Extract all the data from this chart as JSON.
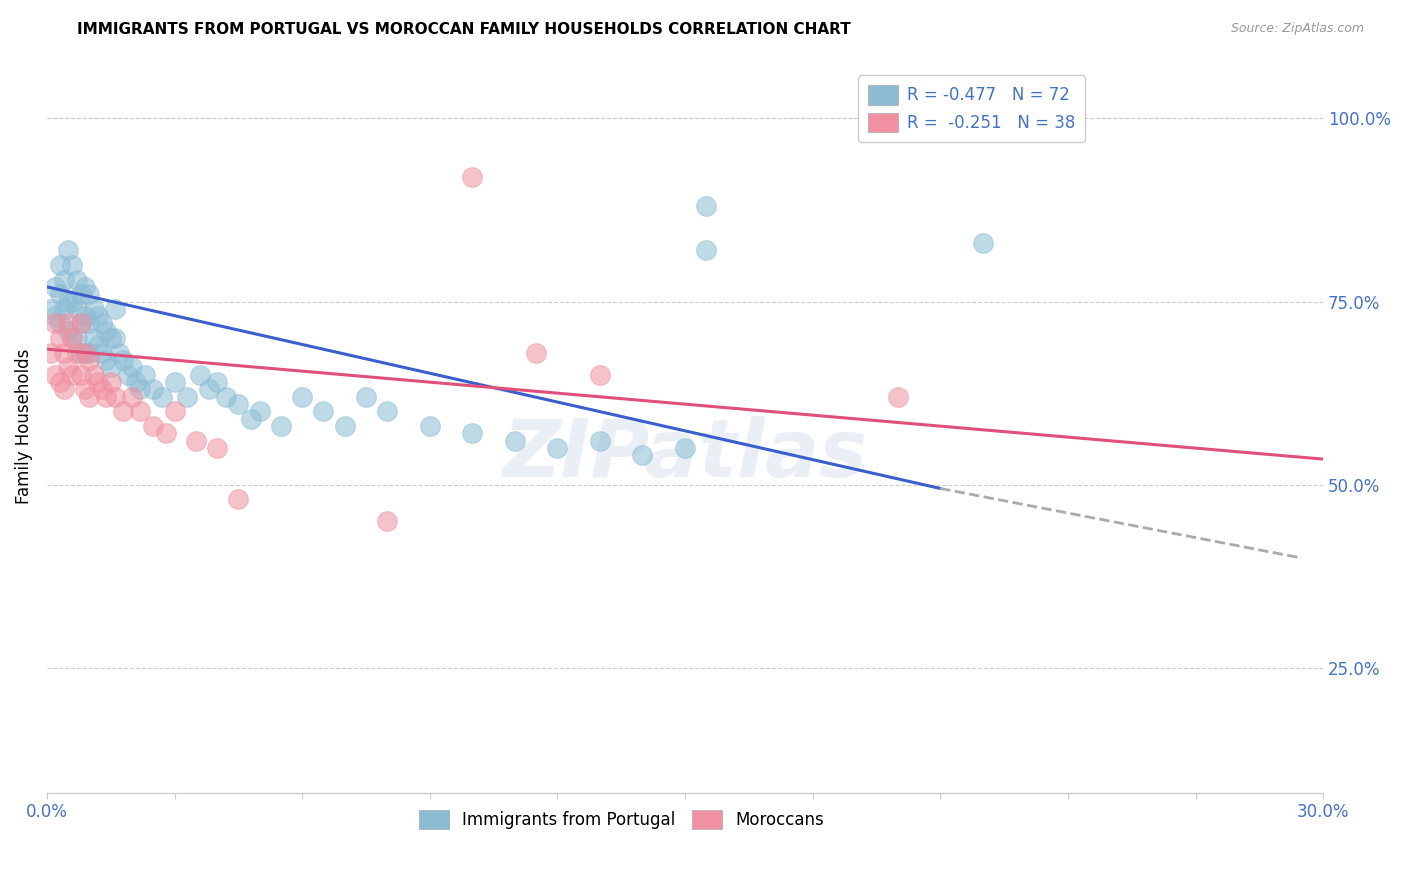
{
  "title": "IMMIGRANTS FROM PORTUGAL VS MOROCCAN FAMILY HOUSEHOLDS CORRELATION CHART",
  "source": "Source: ZipAtlas.com",
  "ylabel": "Family Households",
  "right_yticks": [
    "100.0%",
    "75.0%",
    "50.0%",
    "25.0%"
  ],
  "right_ytick_vals": [
    1.0,
    0.75,
    0.5,
    0.25
  ],
  "xlim": [
    0.0,
    0.3
  ],
  "ylim": [
    0.08,
    1.08
  ],
  "legend_bottom": [
    "Immigrants from Portugal",
    "Moroccans"
  ],
  "portugal_color": "#8bbcd4",
  "morocco_color": "#f090a0",
  "trendline_portugal_color": "#3a5fcd",
  "trendline_morocco_color": "#e0507a",
  "trendline_dashed_color": "#aaaaaa",
  "watermark": "ZIPatlas",
  "portugal_x": [
    0.001,
    0.002,
    0.002,
    0.003,
    0.003,
    0.003,
    0.004,
    0.004,
    0.005,
    0.005,
    0.005,
    0.006,
    0.006,
    0.006,
    0.007,
    0.007,
    0.007,
    0.008,
    0.008,
    0.008,
    0.009,
    0.009,
    0.009,
    0.01,
    0.01,
    0.01,
    0.011,
    0.011,
    0.012,
    0.012,
    0.013,
    0.013,
    0.014,
    0.014,
    0.015,
    0.015,
    0.016,
    0.016,
    0.017,
    0.018,
    0.019,
    0.02,
    0.021,
    0.022,
    0.023,
    0.025,
    0.027,
    0.03,
    0.033,
    0.036,
    0.038,
    0.04,
    0.042,
    0.045,
    0.048,
    0.05,
    0.055,
    0.06,
    0.065,
    0.07,
    0.075,
    0.08,
    0.09,
    0.1,
    0.11,
    0.12,
    0.13,
    0.14,
    0.15,
    0.155,
    0.155,
    0.22
  ],
  "portugal_y": [
    0.74,
    0.77,
    0.73,
    0.8,
    0.72,
    0.76,
    0.78,
    0.74,
    0.82,
    0.75,
    0.71,
    0.8,
    0.75,
    0.7,
    0.78,
    0.74,
    0.7,
    0.76,
    0.72,
    0.68,
    0.77,
    0.73,
    0.68,
    0.76,
    0.72,
    0.68,
    0.74,
    0.7,
    0.73,
    0.69,
    0.72,
    0.68,
    0.71,
    0.67,
    0.7,
    0.66,
    0.74,
    0.7,
    0.68,
    0.67,
    0.65,
    0.66,
    0.64,
    0.63,
    0.65,
    0.63,
    0.62,
    0.64,
    0.62,
    0.65,
    0.63,
    0.64,
    0.62,
    0.61,
    0.59,
    0.6,
    0.58,
    0.62,
    0.6,
    0.58,
    0.62,
    0.6,
    0.58,
    0.57,
    0.56,
    0.55,
    0.56,
    0.54,
    0.55,
    0.88,
    0.82,
    0.83
  ],
  "morocco_x": [
    0.001,
    0.002,
    0.002,
    0.003,
    0.003,
    0.004,
    0.004,
    0.005,
    0.005,
    0.006,
    0.006,
    0.007,
    0.008,
    0.008,
    0.009,
    0.009,
    0.01,
    0.01,
    0.011,
    0.012,
    0.013,
    0.014,
    0.015,
    0.016,
    0.018,
    0.02,
    0.022,
    0.025,
    0.028,
    0.03,
    0.035,
    0.04,
    0.045,
    0.08,
    0.1,
    0.115,
    0.13,
    0.2
  ],
  "morocco_y": [
    0.68,
    0.72,
    0.65,
    0.7,
    0.64,
    0.68,
    0.63,
    0.72,
    0.66,
    0.7,
    0.65,
    0.68,
    0.72,
    0.65,
    0.68,
    0.63,
    0.67,
    0.62,
    0.65,
    0.64,
    0.63,
    0.62,
    0.64,
    0.62,
    0.6,
    0.62,
    0.6,
    0.58,
    0.57,
    0.6,
    0.56,
    0.55,
    0.48,
    0.45,
    0.92,
    0.68,
    0.65,
    0.62
  ],
  "trendline_portugal_x0": 0.0,
  "trendline_portugal_y0": 0.77,
  "trendline_portugal_x1": 0.21,
  "trendline_portugal_y1": 0.495,
  "trendline_portugal_dash_x1": 0.295,
  "trendline_portugal_dash_y1": 0.4,
  "trendline_morocco_x0": 0.0,
  "trendline_morocco_y0": 0.685,
  "trendline_morocco_x1": 0.3,
  "trendline_morocco_y1": 0.535
}
